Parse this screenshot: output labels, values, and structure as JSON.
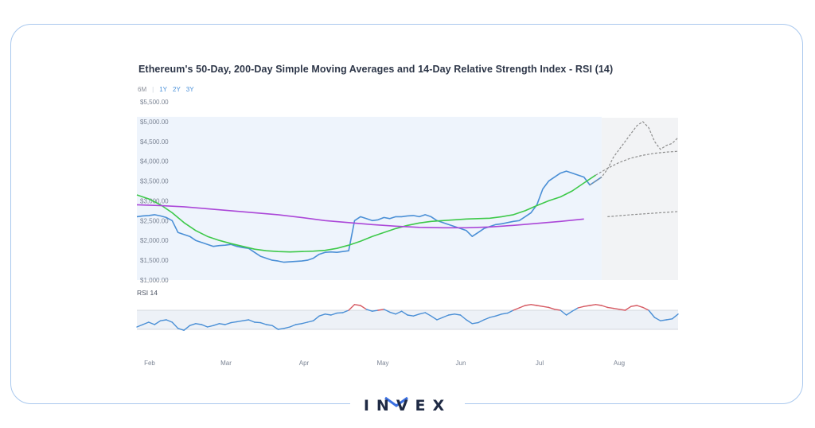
{
  "chart_data": {
    "type": "line",
    "title": "Ethereum's 50-Day, 200-Day Simple Moving Averages and 14-Day Relative Strength Index - RSI (14)",
    "range_buttons": [
      "6M",
      "1Y",
      "2Y",
      "3Y"
    ],
    "selected_range": "6M",
    "price_panel": {
      "yticks": [
        "$5,500.00",
        "$5,000.00",
        "$4,500.00",
        "$4,000.00",
        "$3,500.00",
        "$3,000.00",
        "$2,500.00",
        "$2,000.00",
        "$1,500.00",
        "$1,000.00"
      ],
      "ylim": [
        1000,
        5500
      ],
      "series": [
        {
          "color": "#4a8fd6",
          "x": [
            0,
            2,
            4,
            6,
            8,
            10,
            12,
            14,
            16,
            18,
            20,
            22,
            24,
            26,
            28,
            30,
            32,
            34,
            36,
            38,
            40,
            42,
            44,
            46,
            48,
            50,
            52,
            54,
            56,
            58,
            60,
            62,
            64,
            66,
            68,
            70,
            72,
            74,
            76,
            78,
            80,
            82,
            84,
            86,
            88,
            90,
            92,
            94,
            96,
            98,
            100,
            102,
            104,
            106,
            108,
            110,
            112,
            114,
            116,
            118,
            120,
            122,
            124,
            126,
            128,
            130,
            132,
            134,
            136,
            138,
            140,
            142,
            144,
            146,
            148,
            150,
            152,
            154,
            156,
            158,
            160,
            162,
            164,
            166,
            168,
            170,
            172,
            174,
            176,
            178,
            180,
            182,
            184
          ],
          "values": [
            2600,
            2620,
            2630,
            2650,
            2620,
            2580,
            2500,
            2200,
            2150,
            2100,
            2000,
            1950,
            1900,
            1850,
            1870,
            1880,
            1900,
            1850,
            1820,
            1800,
            1700,
            1600,
            1550,
            1500,
            1480,
            1450,
            1460,
            1470,
            1480,
            1500,
            1550,
            1650,
            1700,
            1710,
            1700,
            1720,
            1740,
            2500,
            2600,
            2550,
            2500,
            2520,
            2580,
            2550,
            2600,
            2600,
            2620,
            2630,
            2600,
            2650,
            2600,
            2500,
            2450,
            2400,
            2350,
            2300,
            2250,
            2100,
            2200,
            2300,
            2350,
            2400,
            2420,
            2450,
            2480,
            2500,
            2600,
            2700,
            2900,
            3300,
            3500,
            3600,
            3700,
            3750,
            3700,
            3650,
            3600,
            3400,
            3500,
            3600,
            3800,
            4100,
            4300,
            4500,
            4700,
            4900,
            5000,
            4850,
            4500,
            4300,
            4400,
            4450,
            4600
          ]
        },
        {
          "color": "#3ec94a",
          "x": [
            0,
            4,
            8,
            12,
            16,
            20,
            24,
            28,
            32,
            36,
            40,
            44,
            48,
            52,
            56,
            60,
            64,
            68,
            72,
            76,
            80,
            84,
            88,
            92,
            96,
            100,
            104,
            108,
            112,
            116,
            120,
            124,
            128,
            132,
            136,
            140,
            144,
            148,
            152,
            156,
            160,
            164,
            168,
            172,
            176,
            180,
            184
          ],
          "values": [
            3150,
            3050,
            2900,
            2700,
            2450,
            2250,
            2100,
            2000,
            1920,
            1850,
            1780,
            1740,
            1720,
            1710,
            1720,
            1730,
            1750,
            1800,
            1880,
            1980,
            2100,
            2200,
            2300,
            2380,
            2440,
            2480,
            2500,
            2520,
            2540,
            2550,
            2560,
            2600,
            2650,
            2750,
            2880,
            3000,
            3100,
            3250,
            3450,
            3650,
            3820,
            3970,
            4080,
            4150,
            4200,
            4230,
            4250
          ]
        },
        {
          "color": "#ab47d8",
          "x": [
            0,
            8,
            16,
            24,
            32,
            40,
            48,
            56,
            64,
            72,
            80,
            88,
            96,
            104,
            112,
            120,
            128,
            136,
            144,
            152,
            160,
            168,
            176,
            184
          ],
          "values": [
            2900,
            2880,
            2850,
            2800,
            2750,
            2700,
            2650,
            2580,
            2500,
            2450,
            2400,
            2360,
            2330,
            2320,
            2320,
            2340,
            2380,
            2430,
            2480,
            2540,
            2600,
            2650,
            2690,
            2730
          ]
        }
      ],
      "forecast_start_x": 158
    },
    "rsi_panel": {
      "label": "RSI 14",
      "ylim": [
        0,
        100
      ],
      "band": [
        30,
        70
      ],
      "series": [
        {
          "color": "#4a8fd6",
          "overbought_color": "#d65a63",
          "oversold_color": "#d65a63",
          "x": [
            0,
            2,
            4,
            6,
            8,
            10,
            12,
            14,
            16,
            18,
            20,
            22,
            24,
            26,
            28,
            30,
            32,
            34,
            36,
            38,
            40,
            42,
            44,
            46,
            48,
            50,
            52,
            54,
            56,
            58,
            60,
            62,
            64,
            66,
            68,
            70,
            72,
            74,
            76,
            78,
            80,
            82,
            84,
            86,
            88,
            90,
            92,
            94,
            96,
            98,
            100,
            102,
            104,
            106,
            108,
            110,
            112,
            114,
            116,
            118,
            120,
            122,
            124,
            126,
            128,
            130,
            132,
            134,
            136,
            138,
            140,
            142,
            144,
            146,
            148,
            150,
            152,
            154,
            156,
            158,
            160,
            162,
            164,
            166,
            168,
            170,
            172,
            174,
            176,
            178,
            180,
            182,
            184
          ],
          "values": [
            35,
            40,
            45,
            40,
            48,
            50,
            45,
            32,
            28,
            38,
            42,
            40,
            35,
            38,
            42,
            40,
            44,
            46,
            48,
            50,
            45,
            44,
            40,
            38,
            30,
            32,
            35,
            40,
            42,
            45,
            48,
            58,
            62,
            60,
            64,
            65,
            70,
            82,
            80,
            72,
            68,
            70,
            72,
            66,
            62,
            68,
            60,
            58,
            62,
            65,
            58,
            50,
            55,
            60,
            62,
            60,
            50,
            42,
            44,
            50,
            55,
            58,
            62,
            64,
            70,
            75,
            80,
            82,
            80,
            78,
            76,
            72,
            70,
            60,
            68,
            75,
            78,
            80,
            82,
            80,
            76,
            74,
            72,
            70,
            78,
            80,
            76,
            70,
            55,
            48,
            50,
            52,
            62
          ]
        }
      ]
    },
    "x_ticks": [
      "Feb",
      "Mar",
      "Apr",
      "May",
      "Jun",
      "Jul",
      "Aug"
    ],
    "xlim": [
      0,
      184
    ]
  },
  "brand": {
    "name": "INVEX",
    "accent": "#3a6fe0",
    "text_color": "#1f2a44"
  }
}
